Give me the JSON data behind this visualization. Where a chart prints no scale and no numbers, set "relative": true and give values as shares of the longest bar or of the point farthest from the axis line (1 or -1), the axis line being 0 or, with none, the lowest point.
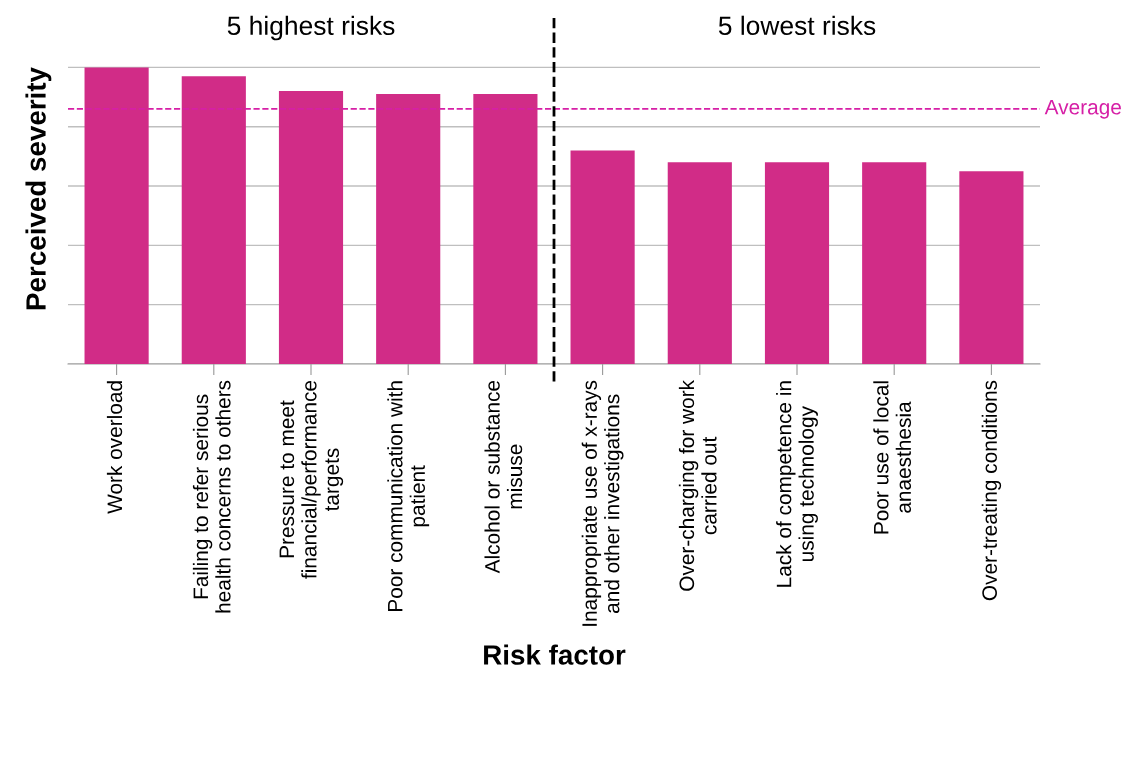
{
  "chart_data": {
    "type": "bar",
    "relative": true,
    "xlabel": "Risk factor",
    "ylabel": "Perceived severity",
    "categories": [
      "Work overload",
      "Failing to refer serious\nhealth concerns to others",
      "Pressure to meet\nfinancial/performance\ntargets",
      "Poor communication with\npatient",
      "Alcohol or substance\nmisuse",
      "Inappropriate use of x-rays\nand other investigations",
      "Over-charging for work\ncarried out",
      "Lack of competence in\nusing technology",
      "Poor use of local\nanaesthesia",
      "Over-treating conditions"
    ],
    "values": [
      1,
      0.97,
      0.92,
      0.91,
      0.91,
      0.72,
      0.68,
      0.68,
      0.68,
      0.65
    ],
    "color": "#d12c87",
    "grid": "y",
    "annotations": [
      "5 highest risks",
      "5 lowest risks"
    ],
    "ref_lines": [
      {
        "axis": "y",
        "value": 0.86,
        "label": "Average",
        "color": "#d61fa6",
        "line_style": "dashed"
      }
    ]
  }
}
